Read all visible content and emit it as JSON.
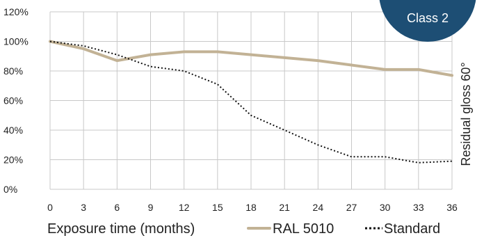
{
  "chart_data": {
    "type": "line",
    "x": [
      0,
      3,
      6,
      9,
      12,
      15,
      18,
      21,
      24,
      27,
      30,
      33,
      36
    ],
    "xticks": [
      "0",
      "3",
      "6",
      "9",
      "12",
      "15",
      "18",
      "21",
      "24",
      "27",
      "30",
      "33",
      "36"
    ],
    "yticks": [
      "0%",
      "20%",
      "40%",
      "60%",
      "80%",
      "100%",
      "120%"
    ],
    "xlabel": "Exposure time (months)",
    "ylabel": "Residual gloss 60°",
    "xlim": [
      0,
      36
    ],
    "ylim": [
      0,
      120
    ],
    "grid": "vertical and horizontal",
    "legend_position": "bottom",
    "series": [
      {
        "name": "RAL 5010",
        "style": "solid",
        "color": "#c2b295",
        "values": [
          100,
          95,
          87,
          91,
          93,
          93,
          91,
          89,
          87,
          84,
          81,
          81,
          77
        ]
      },
      {
        "name": "Standard",
        "style": "dotted",
        "color": "#111111",
        "values": [
          100,
          97,
          91,
          83,
          80,
          71,
          50,
          40,
          30,
          22,
          22,
          18,
          19
        ]
      }
    ]
  },
  "badge": {
    "text": "Class 2",
    "color": "#1d4e74"
  }
}
